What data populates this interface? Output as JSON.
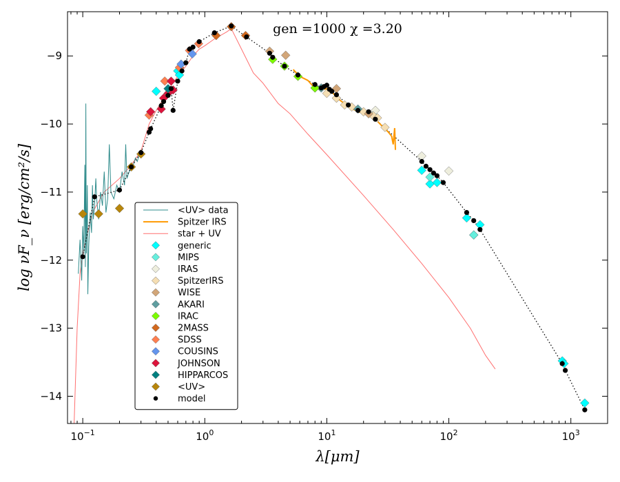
{
  "chart_data": {
    "type": "scatter",
    "title": "gen =1000  χ =3.20",
    "xlabel": "λ[μm]",
    "ylabel": "log νF_ν [erg/cm²/s]",
    "xscale": "log",
    "xlim": [
      0.075,
      2000
    ],
    "ylim": [
      -14.4,
      -8.35
    ],
    "x_ticks": [
      {
        "v": 0.1,
        "base": "10",
        "exp": "−1"
      },
      {
        "v": 1,
        "base": "10",
        "exp": "0"
      },
      {
        "v": 10,
        "base": "10",
        "exp": "1"
      },
      {
        "v": 100,
        "base": "10",
        "exp": "2"
      },
      {
        "v": 1000,
        "base": "10",
        "exp": "3"
      }
    ],
    "y_ticks": [
      {
        "v": -9,
        "label": "−9"
      },
      {
        "v": -10,
        "label": "−10"
      },
      {
        "v": -11,
        "label": "−11"
      },
      {
        "v": -12,
        "label": "−12"
      },
      {
        "v": -13,
        "label": "−13"
      },
      {
        "v": -14,
        "label": "−14"
      }
    ],
    "legend_position": "lower-left",
    "legend": [
      {
        "label": "<UV> data",
        "kind": "line",
        "color": "#2e8b8b"
      },
      {
        "label": "Spitzer IRS",
        "kind": "thickline",
        "color": "#ff9900"
      },
      {
        "label": "star + UV",
        "kind": "line",
        "color": "#ff6f6f"
      },
      {
        "label": "generic",
        "kind": "diamond",
        "color": "#00ffff"
      },
      {
        "label": "MIPS",
        "kind": "diamond",
        "color": "#66eedd"
      },
      {
        "label": "IRAS",
        "kind": "diamond",
        "color": "#eeeedd"
      },
      {
        "label": "SpitzerIRS",
        "kind": "diamond",
        "color": "#f5deb3"
      },
      {
        "label": "WISE",
        "kind": "diamond",
        "color": "#d2a679"
      },
      {
        "label": "AKARI",
        "kind": "diamond",
        "color": "#5f9ea0"
      },
      {
        "label": "IRAC",
        "kind": "diamond",
        "color": "#7cfc00"
      },
      {
        "label": "2MASS",
        "kind": "diamond",
        "color": "#d2691e"
      },
      {
        "label": "SDSS",
        "kind": "diamond",
        "color": "#ff7f50"
      },
      {
        "label": "COUSINS",
        "kind": "diamond",
        "color": "#6495ed"
      },
      {
        "label": "JOHNSON",
        "kind": "diamond",
        "color": "#dc143c"
      },
      {
        "label": "HIPPARCOS",
        "kind": "diamond",
        "color": "#008080"
      },
      {
        "label": "<UV>",
        "kind": "diamond",
        "color": "#b8860b"
      },
      {
        "label": "model",
        "kind": "dot",
        "color": "#000000"
      }
    ],
    "series": [
      {
        "name": "model",
        "kind": "model",
        "color": "#000000",
        "points": [
          [
            0.1,
            -11.95
          ],
          [
            0.125,
            -11.07
          ],
          [
            0.2,
            -10.97
          ],
          [
            0.25,
            -10.63
          ],
          [
            0.3,
            -10.42
          ],
          [
            0.35,
            -10.12
          ],
          [
            0.36,
            -10.07
          ],
          [
            0.44,
            -9.73
          ],
          [
            0.46,
            -9.67
          ],
          [
            0.5,
            -9.58
          ],
          [
            0.53,
            -9.48
          ],
          [
            0.55,
            -9.8
          ],
          [
            0.6,
            -9.37
          ],
          [
            0.65,
            -9.22
          ],
          [
            0.7,
            -9.1
          ],
          [
            0.75,
            -8.9
          ],
          [
            0.8,
            -8.87
          ],
          [
            0.9,
            -8.79
          ],
          [
            1.2,
            -8.66
          ],
          [
            1.65,
            -8.56
          ],
          [
            2.2,
            -8.72
          ],
          [
            3.4,
            -8.96
          ],
          [
            3.6,
            -9.02
          ],
          [
            4.5,
            -9.15
          ],
          [
            5.8,
            -9.28
          ],
          [
            8,
            -9.42
          ],
          [
            9,
            -9.47
          ],
          [
            9.5,
            -9.45
          ],
          [
            10,
            -9.43
          ],
          [
            10.5,
            -9.49
          ],
          [
            11,
            -9.52
          ],
          [
            12,
            -9.57
          ],
          [
            15,
            -9.72
          ],
          [
            18,
            -9.8
          ],
          [
            22,
            -9.82
          ],
          [
            25,
            -9.93
          ],
          [
            60,
            -10.55
          ],
          [
            65,
            -10.62
          ],
          [
            70,
            -10.67
          ],
          [
            75,
            -10.72
          ],
          [
            80,
            -10.76
          ],
          [
            90,
            -10.86
          ],
          [
            140,
            -11.3
          ],
          [
            160,
            -11.42
          ],
          [
            180,
            -11.55
          ],
          [
            850,
            -13.52
          ],
          [
            900,
            -13.62
          ],
          [
            1300,
            -14.2
          ]
        ]
      },
      {
        "name": "generic",
        "kind": "phot",
        "color": "#00ffff",
        "points": [
          [
            0.6,
            -9.22
          ],
          [
            0.62,
            -9.28
          ],
          [
            0.4,
            -9.52
          ],
          [
            60,
            -10.68
          ],
          [
            70,
            -10.88
          ],
          [
            80,
            -10.86
          ],
          [
            140,
            -11.38
          ],
          [
            160,
            -11.63
          ],
          [
            180,
            -11.48
          ],
          [
            850,
            -13.48
          ],
          [
            880,
            -13.52
          ],
          [
            1300,
            -14.1
          ]
        ]
      },
      {
        "name": "MIPS",
        "kind": "phot",
        "color": "#66eedd",
        "points": [
          [
            24,
            -9.87
          ],
          [
            70,
            -10.78
          ],
          [
            160,
            -11.63
          ]
        ]
      },
      {
        "name": "IRAS",
        "kind": "phot",
        "color": "#eeeedd",
        "points": [
          [
            12,
            -9.62
          ],
          [
            25,
            -9.8
          ],
          [
            60,
            -10.47
          ],
          [
            100,
            -10.69
          ]
        ]
      },
      {
        "name": "SpitzerIRS",
        "kind": "phot",
        "color": "#f5deb3",
        "points": [
          [
            8,
            -9.47
          ],
          [
            10,
            -9.55
          ],
          [
            12,
            -9.62
          ],
          [
            14,
            -9.72
          ],
          [
            16,
            -9.75
          ],
          [
            20,
            -9.82
          ],
          [
            24,
            -9.88
          ],
          [
            26,
            -9.91
          ],
          [
            30,
            -10.05
          ]
        ]
      },
      {
        "name": "WISE",
        "kind": "phot",
        "color": "#d2a679",
        "points": [
          [
            3.4,
            -8.93
          ],
          [
            4.6,
            -8.99
          ],
          [
            12,
            -9.48
          ],
          [
            22,
            -9.85
          ]
        ]
      },
      {
        "name": "AKARI",
        "kind": "phot",
        "color": "#5f9ea0",
        "points": [
          [
            9,
            -9.47
          ],
          [
            18,
            -9.78
          ]
        ]
      },
      {
        "name": "IRAC",
        "kind": "phot",
        "color": "#7cfc00",
        "points": [
          [
            3.6,
            -9.05
          ],
          [
            4.5,
            -9.15
          ],
          [
            5.8,
            -9.3
          ],
          [
            8,
            -9.47
          ]
        ]
      },
      {
        "name": "2MASS",
        "kind": "phot",
        "color": "#d2691e",
        "points": [
          [
            1.24,
            -8.7
          ],
          [
            1.65,
            -8.57
          ],
          [
            2.16,
            -8.7
          ]
        ]
      },
      {
        "name": "SDSS",
        "kind": "phot",
        "color": "#ff7f50",
        "points": [
          [
            0.35,
            -9.87
          ],
          [
            0.47,
            -9.37
          ],
          [
            0.62,
            -9.17
          ],
          [
            0.75,
            -8.92
          ],
          [
            0.89,
            -8.82
          ]
        ]
      },
      {
        "name": "COUSINS",
        "kind": "phot",
        "color": "#6495ed",
        "points": [
          [
            0.64,
            -9.12
          ],
          [
            0.79,
            -8.97
          ]
        ]
      },
      {
        "name": "JOHNSON",
        "kind": "phot",
        "color": "#dc143c",
        "points": [
          [
            0.36,
            -9.82
          ],
          [
            0.44,
            -9.78
          ],
          [
            0.46,
            -9.62
          ],
          [
            0.5,
            -9.55
          ],
          [
            0.55,
            -9.5
          ],
          [
            0.53,
            -9.37
          ]
        ]
      },
      {
        "name": "HIPPARCOS",
        "kind": "phot",
        "color": "#008080",
        "points": [
          [
            0.5,
            -9.48
          ]
        ]
      },
      {
        "name": "<UV>",
        "kind": "phot",
        "color": "#b8860b",
        "points": [
          [
            0.1,
            -11.32
          ],
          [
            0.135,
            -11.32
          ],
          [
            0.2,
            -11.24
          ],
          [
            0.25,
            -10.63
          ],
          [
            0.3,
            -10.44
          ]
        ]
      },
      {
        "name": "Spitzer IRS",
        "kind": "irs",
        "color": "#ff9900",
        "points": [
          [
            5.3,
            -9.2
          ],
          [
            6,
            -9.3
          ],
          [
            7,
            -9.36
          ],
          [
            7.5,
            -9.42
          ],
          [
            8,
            -9.47
          ],
          [
            9,
            -9.5
          ],
          [
            10,
            -9.48
          ],
          [
            11,
            -9.53
          ],
          [
            12,
            -9.6
          ],
          [
            13,
            -9.66
          ],
          [
            14,
            -9.7
          ],
          [
            15,
            -9.74
          ],
          [
            16,
            -9.77
          ],
          [
            18,
            -9.82
          ],
          [
            20,
            -9.84
          ],
          [
            22,
            -9.87
          ],
          [
            24,
            -9.92
          ],
          [
            26,
            -9.96
          ],
          [
            28,
            -10.02
          ],
          [
            30,
            -10.07
          ],
          [
            32,
            -10.12
          ],
          [
            34,
            -10.18
          ],
          [
            35,
            -10.3
          ],
          [
            36,
            -10.06
          ],
          [
            36.5,
            -10.38
          ]
        ]
      },
      {
        "name": "<UV> data",
        "kind": "uv",
        "color": "#2e8b8b",
        "points": [
          [
            0.092,
            -12.2
          ],
          [
            0.095,
            -11.7
          ],
          [
            0.098,
            -12.3
          ],
          [
            0.1,
            -11.5
          ],
          [
            0.102,
            -11.9
          ],
          [
            0.104,
            -10.6
          ],
          [
            0.105,
            -12.1
          ],
          [
            0.106,
            -9.7
          ],
          [
            0.107,
            -11.9
          ],
          [
            0.109,
            -10.9
          ],
          [
            0.11,
            -12.5
          ],
          [
            0.112,
            -11.8
          ],
          [
            0.115,
            -11.3
          ],
          [
            0.118,
            -11.6
          ],
          [
            0.12,
            -10.9
          ],
          [
            0.122,
            -11.4
          ],
          [
            0.125,
            -11.2
          ],
          [
            0.128,
            -10.8
          ],
          [
            0.13,
            -11.1
          ],
          [
            0.135,
            -11.4
          ],
          [
            0.14,
            -11.0
          ],
          [
            0.145,
            -11.2
          ],
          [
            0.15,
            -10.7
          ],
          [
            0.155,
            -11.3
          ],
          [
            0.16,
            -11.1
          ],
          [
            0.165,
            -10.3
          ],
          [
            0.17,
            -11.0
          ],
          [
            0.18,
            -11.1
          ],
          [
            0.19,
            -10.9
          ],
          [
            0.2,
            -11.0
          ],
          [
            0.21,
            -10.7
          ],
          [
            0.22,
            -10.9
          ],
          [
            0.225,
            -10.3
          ],
          [
            0.23,
            -10.8
          ],
          [
            0.24,
            -10.7
          ],
          [
            0.25,
            -10.65
          ],
          [
            0.26,
            -10.6
          ],
          [
            0.27,
            -10.5
          ],
          [
            0.28,
            -10.55
          ],
          [
            0.29,
            -10.45
          ],
          [
            0.3,
            -10.4
          ],
          [
            0.31,
            -10.4
          ]
        ]
      },
      {
        "name": "star + UV",
        "kind": "star",
        "color": "#ff6f6f",
        "points": [
          [
            0.085,
            -14.4
          ],
          [
            0.09,
            -13.0
          ],
          [
            0.095,
            -12.2
          ],
          [
            0.1,
            -11.9
          ],
          [
            0.12,
            -11.3
          ],
          [
            0.15,
            -11.0
          ],
          [
            0.2,
            -10.8
          ],
          [
            0.25,
            -10.6
          ],
          [
            0.3,
            -10.4
          ],
          [
            0.35,
            -10.0
          ],
          [
            0.4,
            -9.8
          ],
          [
            0.45,
            -9.65
          ],
          [
            0.5,
            -9.5
          ],
          [
            0.6,
            -9.3
          ],
          [
            0.7,
            -9.15
          ],
          [
            0.8,
            -9.0
          ],
          [
            0.9,
            -8.9
          ],
          [
            1.0,
            -8.85
          ],
          [
            1.2,
            -8.75
          ],
          [
            1.5,
            -8.65
          ],
          [
            1.65,
            -8.6
          ],
          [
            2.0,
            -8.9
          ],
          [
            2.5,
            -9.25
          ],
          [
            3.0,
            -9.4
          ],
          [
            4.0,
            -9.7
          ],
          [
            5.0,
            -9.85
          ],
          [
            7.0,
            -10.15
          ],
          [
            10,
            -10.45
          ],
          [
            20,
            -11.05
          ],
          [
            35,
            -11.55
          ],
          [
            60,
            -12.05
          ],
          [
            100,
            -12.55
          ],
          [
            150,
            -13.0
          ],
          [
            200,
            -13.4
          ],
          [
            240,
            -13.6
          ]
        ]
      }
    ]
  }
}
